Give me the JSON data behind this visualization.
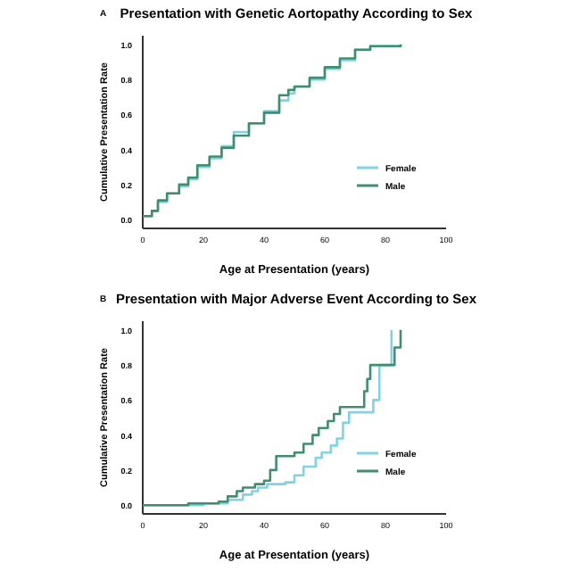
{
  "chart_data": [
    {
      "type": "step",
      "title": "Presentation with Genetic Aortopathy According to Sex",
      "xlabel": "Age at Presentation (years)",
      "ylabel": "Cumulative Presentation Rate",
      "annotations": [
        "A"
      ],
      "xlim": [
        0,
        100
      ],
      "ylim": [
        -0.05,
        1.05
      ],
      "xticks": [
        0,
        20,
        40,
        60,
        80,
        100
      ],
      "yticks": [
        {
          "value": 0,
          "label": "0.0"
        },
        {
          "value": 0.2,
          "label": "0.2"
        },
        {
          "value": 0.4,
          "label": "0.4"
        },
        {
          "value": 0.6,
          "label": "0.6"
        },
        {
          "value": 0.8,
          "label": "0.8"
        },
        {
          "value": 1,
          "label": "1.0"
        }
      ],
      "legend": "bottom right",
      "grid": false,
      "series": [
        {
          "name": "Female",
          "color": "#7fd3e6",
          "x": [
            0,
            3,
            5,
            8,
            12,
            15,
            18,
            22,
            26,
            30,
            35,
            40,
            45,
            48,
            50,
            55,
            60,
            65,
            70,
            75,
            85
          ],
          "values": [
            0.02,
            0.05,
            0.1,
            0.15,
            0.19,
            0.23,
            0.3,
            0.35,
            0.42,
            0.5,
            0.55,
            0.62,
            0.68,
            0.72,
            0.76,
            0.8,
            0.86,
            0.91,
            0.97,
            0.99,
            1.0
          ]
        },
        {
          "name": "Male",
          "color": "#3f8f6f",
          "x": [
            0,
            3,
            5,
            8,
            12,
            15,
            18,
            22,
            26,
            30,
            35,
            40,
            45,
            48,
            50,
            55,
            60,
            65,
            70,
            75,
            85
          ],
          "values": [
            0.02,
            0.05,
            0.11,
            0.15,
            0.2,
            0.24,
            0.31,
            0.36,
            0.41,
            0.48,
            0.55,
            0.61,
            0.71,
            0.74,
            0.76,
            0.81,
            0.87,
            0.92,
            0.97,
            0.99,
            1.0
          ]
        }
      ]
    },
    {
      "type": "step",
      "title": "Presentation with Major Adverse Event According to Sex",
      "xlabel": "Age at Presentation (years)",
      "ylabel": "Cumulative Presentation Rate",
      "annotations": [
        "B"
      ],
      "xlim": [
        0,
        100
      ],
      "ylim": [
        -0.05,
        1.05
      ],
      "xticks": [
        0,
        20,
        40,
        60,
        80,
        100
      ],
      "yticks": [
        {
          "value": 0,
          "label": "0.0"
        },
        {
          "value": 0.2,
          "label": "0.2"
        },
        {
          "value": 0.4,
          "label": "0.4"
        },
        {
          "value": 0.6,
          "label": "0.6"
        },
        {
          "value": 0.8,
          "label": "0.8"
        },
        {
          "value": 1,
          "label": "1.0"
        }
      ],
      "legend": "bottom right",
      "grid": false,
      "series": [
        {
          "name": "Female",
          "color": "#7fd3e6",
          "x": [
            0,
            20,
            25,
            28,
            33,
            36,
            38,
            41,
            47,
            50,
            53,
            57,
            59,
            62,
            64,
            66,
            68,
            74,
            76,
            78,
            82
          ],
          "values": [
            0,
            0.01,
            0.01,
            0.03,
            0.06,
            0.08,
            0.1,
            0.12,
            0.13,
            0.17,
            0.22,
            0.27,
            0.3,
            0.34,
            0.38,
            0.47,
            0.53,
            0.53,
            0.6,
            0.8,
            1.0
          ]
        },
        {
          "name": "Male",
          "color": "#3f8f6f",
          "x": [
            0,
            15,
            20,
            25,
            28,
            31,
            33,
            37,
            40,
            42,
            44,
            50,
            53,
            56,
            58,
            61,
            63,
            65,
            73,
            74,
            75,
            83,
            85
          ],
          "values": [
            0,
            0.01,
            0.01,
            0.02,
            0.05,
            0.08,
            0.1,
            0.12,
            0.14,
            0.2,
            0.28,
            0.3,
            0.35,
            0.4,
            0.44,
            0.48,
            0.52,
            0.56,
            0.65,
            0.72,
            0.8,
            0.9,
            1.0
          ]
        }
      ]
    }
  ]
}
